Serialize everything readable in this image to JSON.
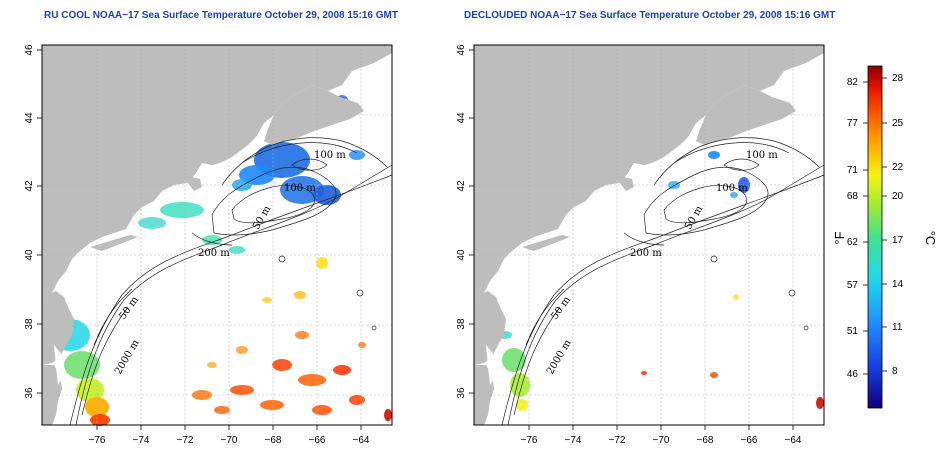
{
  "titles": {
    "left": "RU COOL NOAA−17 Sea Surface Temperature October 29, 2008 15:16 GMT",
    "right": "DECLOUDED NOAA−17 Sea Surface Temperature October 29, 2008 15:16 GMT"
  },
  "axes": {
    "x_ticks": [
      "−76",
      "−74",
      "−72",
      "−70",
      "−68",
      "−66",
      "−64"
    ],
    "y_ticks": [
      "46",
      "44",
      "42",
      "40",
      "38",
      "36"
    ]
  },
  "contour_labels": {
    "left": [
      "100 m",
      "100 m",
      "50 m",
      "200 m",
      "50 m",
      "2000 m"
    ],
    "right": [
      "100 m",
      "100 m",
      "50 m",
      "200 m",
      "50 m",
      "2000 m"
    ]
  },
  "colorbar": {
    "fahrenheit_ticks": [
      "82",
      "77",
      "71",
      "68",
      "62",
      "57",
      "51",
      "46"
    ],
    "celsius_ticks": [
      "28",
      "25",
      "22",
      "20",
      "17",
      "14",
      "11",
      "8"
    ],
    "fahrenheit_unit": "°F",
    "celsius_unit": "°C"
  },
  "colors": {
    "land": "#bdbdbd",
    "ocean": "#ffffff",
    "title": "#1f3fb0",
    "grid": "#b0b0b0"
  }
}
